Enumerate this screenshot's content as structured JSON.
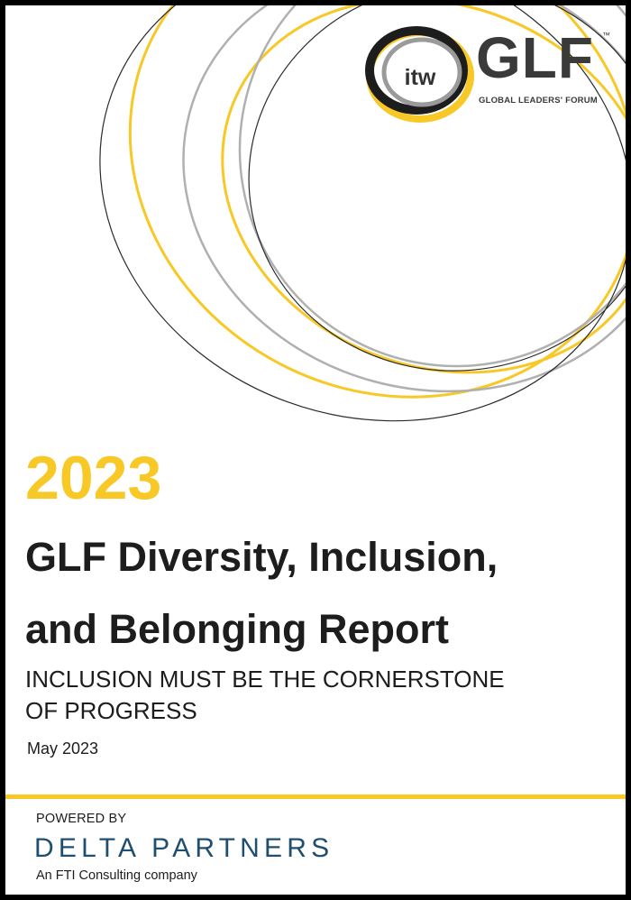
{
  "logo": {
    "itw_text": "itw",
    "glf_text": "GLF",
    "trademark": "™",
    "tagline": "GLOBAL LEADERS' FORUM"
  },
  "report": {
    "year": "2023",
    "title": "GLF Diversity, Inclusion,\nand Belonging  Report",
    "subtitle": "INCLUSION MUST BE THE CORNERSTONE\nOF PROGRESS",
    "date": "May 2023"
  },
  "footer": {
    "powered_by": "POWERED BY",
    "company": "DELTA PARTNERS",
    "company_note": "An FTI Consulting company"
  },
  "colors": {
    "accent_yellow": "#f7c826",
    "text_dark": "#1d1d1d",
    "delta_blue": "#1f4e6e",
    "logo_grey": "#3a3a3a",
    "ring_grey": "#b0b0b0"
  }
}
